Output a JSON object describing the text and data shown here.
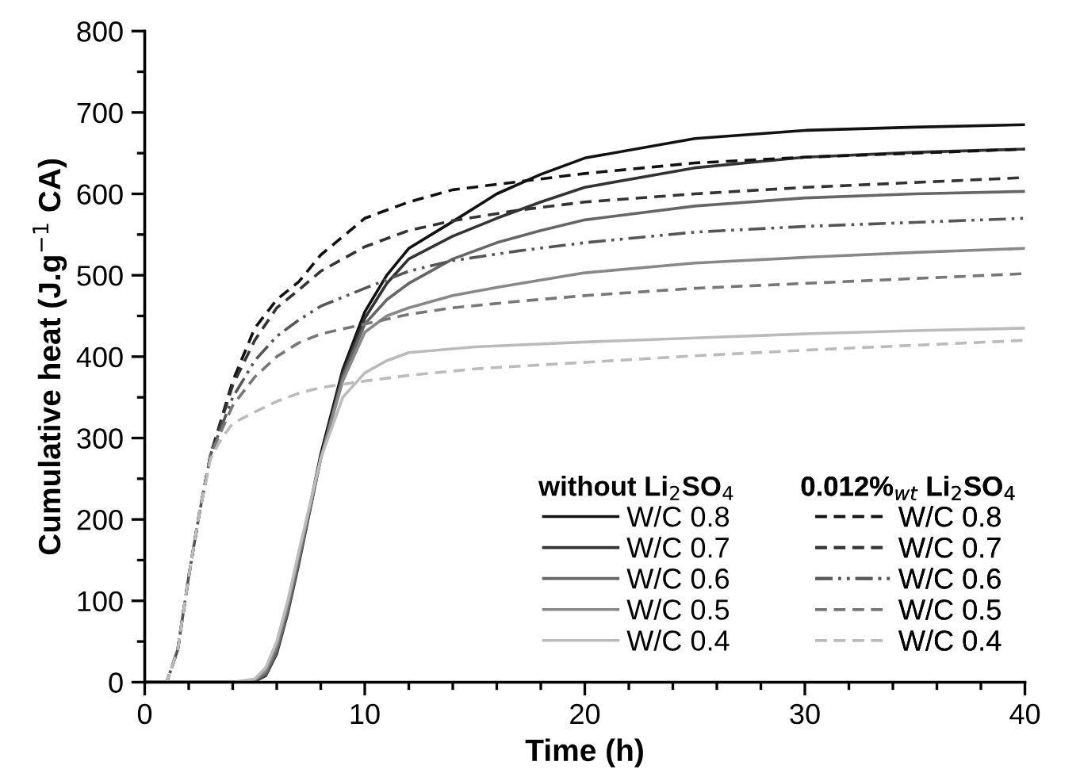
{
  "chart_data": {
    "type": "line",
    "xlabel": "Time (h)",
    "ylabel": "Cumulative heat (J.g$^{−1}$ CA)",
    "annotations": [
      "without Li$_{2}$SO$_{4}$",
      "0.012%$_{wt}$ Li$_{2}$SO$_{4}$"
    ],
    "xlim": [
      0,
      40
    ],
    "xticks": [
      0,
      10,
      20,
      30,
      40
    ],
    "ylim": [
      0,
      800
    ],
    "yticks": [
      0,
      100,
      200,
      300,
      400,
      500,
      600,
      700,
      800
    ],
    "grid": false,
    "legend": "bottom right",
    "marker": "none",
    "series": [
      {
        "name": "W/C 0.8",
        "color": "#111111",
        "line_style": "solid",
        "x": [
          0,
          4,
          5,
          5.5,
          6,
          6.5,
          7,
          8,
          9,
          10,
          11,
          12,
          14,
          16,
          18,
          20,
          25,
          30,
          35,
          40
        ],
        "values": [
          0,
          0,
          2,
          10,
          40,
          90,
          150,
          280,
          384,
          455,
          500,
          533,
          566,
          600,
          624,
          644,
          668,
          678,
          682,
          685
        ]
      },
      {
        "name": "W/C 0.7",
        "color": "#333333",
        "line_style": "solid",
        "x": [
          0,
          4,
          5,
          5.5,
          6,
          6.5,
          7,
          8,
          9,
          10,
          11,
          12,
          14,
          16,
          18,
          20,
          25,
          30,
          35,
          40
        ],
        "values": [
          0,
          0,
          1,
          8,
          35,
          85,
          145,
          275,
          380,
          447,
          490,
          520,
          548,
          570,
          590,
          608,
          632,
          645,
          651,
          655
        ]
      },
      {
        "name": "W/C 0.6",
        "color": "#666666",
        "line_style": "solid",
        "x": [
          0,
          4,
          5,
          5.5,
          6,
          6.5,
          7,
          8,
          9,
          10,
          11,
          12,
          14,
          16,
          18,
          20,
          25,
          30,
          35,
          40
        ],
        "values": [
          0,
          0,
          2,
          10,
          38,
          88,
          148,
          275,
          375,
          440,
          470,
          490,
          520,
          540,
          555,
          568,
          585,
          595,
          600,
          603
        ]
      },
      {
        "name": "W/C 0.5",
        "color": "#888888",
        "line_style": "solid",
        "x": [
          0,
          4,
          5,
          5.5,
          6,
          6.5,
          7,
          8,
          9,
          10,
          11,
          12,
          14,
          16,
          18,
          20,
          25,
          30,
          35,
          40
        ],
        "values": [
          0,
          0,
          3,
          14,
          45,
          95,
          155,
          275,
          370,
          430,
          450,
          460,
          475,
          485,
          494,
          503,
          515,
          522,
          528,
          533
        ]
      },
      {
        "name": "W/C 0.4",
        "color": "#bbbbbb",
        "line_style": "solid",
        "x": [
          0,
          4,
          5,
          5.5,
          6,
          6.5,
          7,
          8,
          9,
          10,
          11,
          12,
          15,
          20,
          25,
          30,
          35,
          40
        ],
        "values": [
          0,
          0,
          4,
          18,
          50,
          100,
          160,
          275,
          350,
          380,
          395,
          405,
          412,
          418,
          423,
          428,
          432,
          435
        ]
      },
      {
        "name": "W/C 0.8",
        "color": "#111111",
        "line_style": "dashed",
        "x": [
          0,
          1,
          1.5,
          2,
          2.5,
          3,
          4,
          5,
          6,
          7,
          8,
          10,
          12,
          14,
          17,
          20,
          25,
          30,
          35,
          40
        ],
        "values": [
          0,
          0,
          40,
          130,
          210,
          280,
          370,
          435,
          470,
          492,
          525,
          570,
          590,
          605,
          615,
          625,
          638,
          645,
          650,
          655
        ]
      },
      {
        "name": "W/C 0.7",
        "color": "#333333",
        "line_style": "dashed",
        "x": [
          0,
          1,
          1.5,
          2,
          2.5,
          3,
          4,
          5,
          6,
          7,
          8,
          10,
          12,
          14,
          17,
          20,
          25,
          30,
          35,
          40
        ],
        "values": [
          0,
          0,
          40,
          130,
          210,
          280,
          365,
          420,
          460,
          482,
          505,
          535,
          555,
          567,
          580,
          590,
          600,
          608,
          614,
          620
        ]
      },
      {
        "name": "W/C 0.6",
        "color": "#555555",
        "line_style": "dashdot",
        "x": [
          0,
          1,
          1.5,
          2,
          2.5,
          3,
          4,
          5,
          6,
          7,
          8,
          10,
          12,
          14,
          17,
          20,
          25,
          30,
          35,
          40
        ],
        "values": [
          0,
          0,
          40,
          130,
          210,
          280,
          350,
          395,
          425,
          445,
          462,
          484,
          505,
          518,
          530,
          540,
          553,
          560,
          565,
          570
        ]
      },
      {
        "name": "W/C 0.5",
        "color": "#777777",
        "line_style": "dashed",
        "x": [
          0,
          1,
          1.5,
          2,
          2.5,
          3,
          4,
          5,
          6,
          7,
          8,
          10,
          12,
          14,
          17,
          20,
          25,
          30,
          35,
          40
        ],
        "values": [
          0,
          0,
          40,
          130,
          210,
          280,
          340,
          375,
          400,
          417,
          428,
          440,
          452,
          460,
          468,
          475,
          484,
          490,
          496,
          502
        ]
      },
      {
        "name": "W/C 0.4",
        "color": "#bbbbbb",
        "line_style": "dashed",
        "x": [
          0,
          1,
          1.5,
          2,
          2.5,
          3,
          3.5,
          4,
          5,
          6,
          7,
          8,
          10,
          12,
          15,
          20,
          25,
          30,
          35,
          40
        ],
        "values": [
          0,
          0,
          40,
          130,
          210,
          275,
          300,
          318,
          332,
          345,
          355,
          362,
          370,
          377,
          385,
          393,
          401,
          408,
          414,
          420
        ]
      }
    ]
  }
}
